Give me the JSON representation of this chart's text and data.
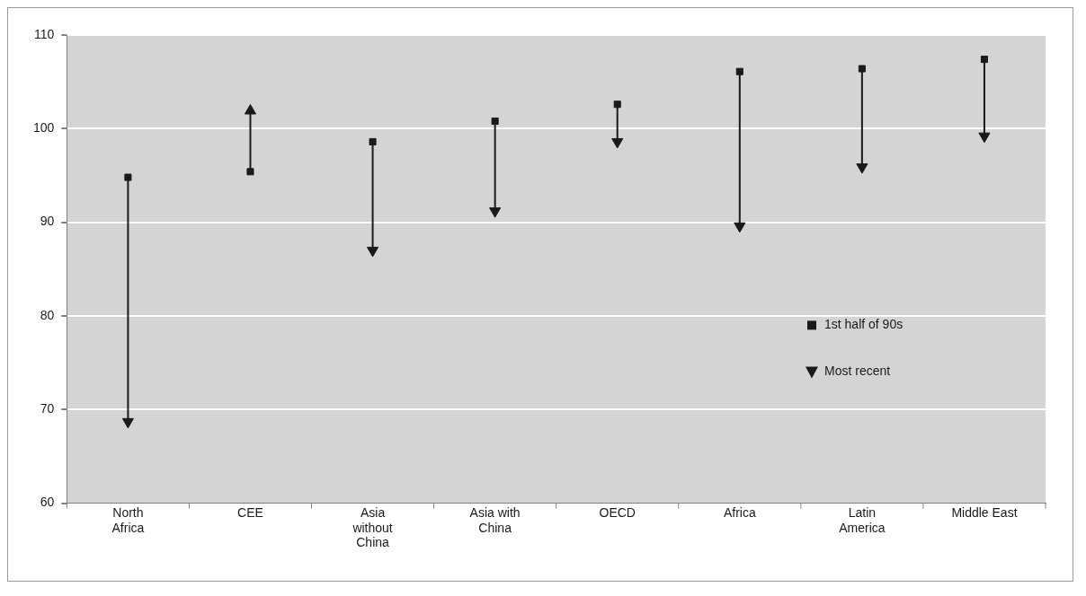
{
  "chart_data": {
    "type": "scatter",
    "categories": [
      "North Africa",
      "CEE",
      "Asia without China",
      "Asia with China",
      "OECD",
      "Africa",
      "Latin America",
      "Middle East"
    ],
    "series": [
      {
        "name": "1st half of 90s",
        "color": "#1a1a1a",
        "marker": "square",
        "values": [
          94.8,
          95.4,
          98.6,
          100.8,
          102.6,
          106.1,
          106.4,
          107.4
        ]
      },
      {
        "name": "Most recent",
        "color": "#1a1a1a",
        "marker": "triangle",
        "values": [
          68.7,
          101.9,
          87.0,
          91.2,
          98.6,
          89.6,
          95.9,
          99.2
        ]
      }
    ],
    "ylim": [
      60,
      110
    ],
    "yticks": [
      60,
      70,
      80,
      90,
      100,
      110
    ],
    "grid": "y",
    "legend": "right"
  }
}
